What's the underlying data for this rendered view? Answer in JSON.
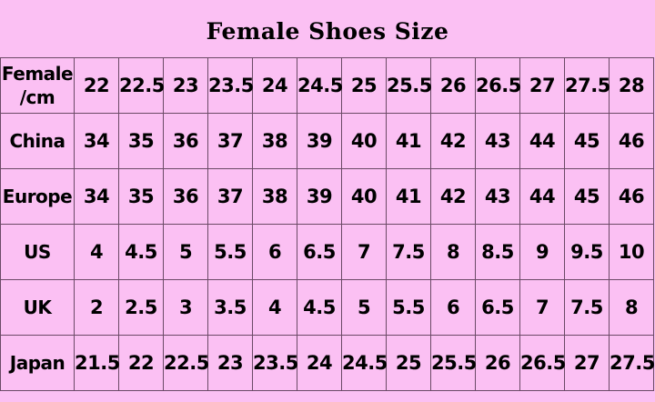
{
  "title": "Female Shoes Size",
  "rows": [
    {
      "label": "Female\n/cm",
      "values": [
        "22",
        "22.5",
        "23",
        "23.5",
        "24",
        "24.5",
        "25",
        "25.5",
        "26",
        "26.5",
        "27",
        "27.5",
        "28"
      ]
    },
    {
      "label": "China",
      "values": [
        "34",
        "35",
        "36",
        "37",
        "38",
        "39",
        "40",
        "41",
        "42",
        "43",
        "44",
        "45",
        "46"
      ]
    },
    {
      "label": "Europe",
      "values": [
        "34",
        "35",
        "36",
        "37",
        "38",
        "39",
        "40",
        "41",
        "42",
        "43",
        "44",
        "45",
        "46"
      ]
    },
    {
      "label": "US",
      "values": [
        "4",
        "4.5",
        "5",
        "5.5",
        "6",
        "6.5",
        "7",
        "7.5",
        "8",
        "8.5",
        "9",
        "9.5",
        "10"
      ]
    },
    {
      "label": "UK",
      "values": [
        "2",
        "2.5",
        "3",
        "3.5",
        "4",
        "4.5",
        "5",
        "5.5",
        "6",
        "6.5",
        "7",
        "7.5",
        "8"
      ]
    },
    {
      "label": "Japan",
      "values": [
        "21.5",
        "22",
        "22.5",
        "23",
        "23.5",
        "24",
        "24.5",
        "25",
        "25.5",
        "26",
        "26.5",
        "27",
        "27.5"
      ]
    }
  ]
}
